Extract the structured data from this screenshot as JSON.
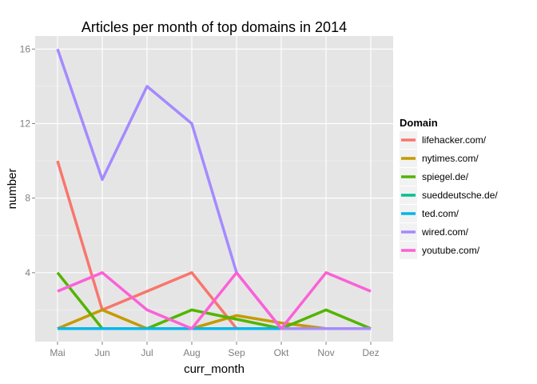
{
  "chart_data": {
    "type": "line",
    "title": "Articles per month of top domains in 2014",
    "xlabel": "curr_month",
    "ylabel": "number",
    "categories": [
      "Mai",
      "Jun",
      "Jul",
      "Aug",
      "Sep",
      "Okt",
      "Nov",
      "Dez"
    ],
    "y_ticks": [
      4,
      8,
      12,
      16
    ],
    "ylim": [
      0.3,
      16.7
    ],
    "grid": true,
    "legend": {
      "title": "Domain",
      "position": "right"
    },
    "series": [
      {
        "name": "lifehacker.com/",
        "color": "#F8766D",
        "values": [
          10,
          2,
          3,
          4,
          1,
          1,
          1,
          1
        ]
      },
      {
        "name": "nytimes.com/",
        "color": "#C49A00",
        "values": [
          1,
          2,
          1,
          1,
          1.7,
          1.3,
          1,
          1
        ]
      },
      {
        "name": "spiegel.de/",
        "color": "#53B400",
        "values": [
          4,
          1,
          1,
          2,
          1.5,
          1,
          2,
          1
        ]
      },
      {
        "name": "sueddeutsche.de/",
        "color": "#00C094",
        "values": [
          1,
          1,
          1,
          1,
          1,
          1,
          1,
          1
        ]
      },
      {
        "name": "ted.com/",
        "color": "#00B6EB",
        "values": [
          1,
          1,
          1,
          1,
          1,
          1,
          1,
          1
        ]
      },
      {
        "name": "wired.com/",
        "color": "#A58AFF",
        "values": [
          16,
          9,
          14,
          12,
          4,
          1,
          1,
          1
        ]
      },
      {
        "name": "youtube.com/",
        "color": "#FB61D7",
        "values": [
          3,
          4,
          2,
          1,
          4,
          1,
          4,
          3
        ]
      }
    ]
  }
}
